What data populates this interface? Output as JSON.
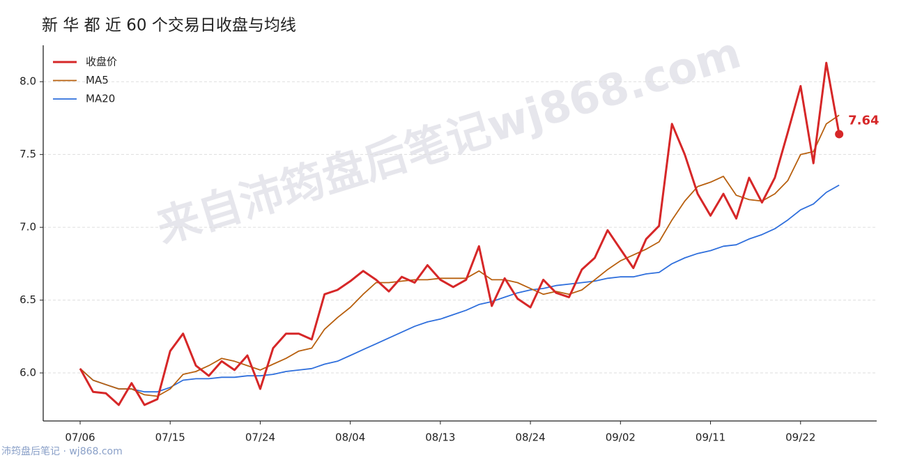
{
  "chart_data": {
    "type": "line",
    "title": "新 华 都 近 60 个交易日收盘与均线",
    "watermark": "来自沛筠盘后笔记wj868.com",
    "source": "沛筠盘后笔记 · wj868.com",
    "categories": [
      "07/06",
      null,
      null,
      null,
      null,
      null,
      null,
      "07/15",
      null,
      null,
      null,
      null,
      null,
      null,
      "07/24",
      null,
      null,
      null,
      null,
      null,
      null,
      "08/04",
      null,
      null,
      null,
      null,
      null,
      null,
      "08/13",
      null,
      null,
      null,
      null,
      null,
      null,
      "08/24",
      null,
      null,
      null,
      null,
      null,
      null,
      "09/02",
      null,
      null,
      null,
      null,
      null,
      null,
      "09/11",
      null,
      null,
      null,
      null,
      null,
      null,
      "09/22",
      null,
      null,
      null
    ],
    "series": [
      {
        "name": "收盘价",
        "color": "#d62728",
        "width": 3,
        "values": [
          6.03,
          5.87,
          5.86,
          5.78,
          5.93,
          5.78,
          5.82,
          6.15,
          6.27,
          6.05,
          5.98,
          6.08,
          6.02,
          6.12,
          5.89,
          6.17,
          6.27,
          6.27,
          6.23,
          6.54,
          6.57,
          6.63,
          6.7,
          6.64,
          6.56,
          6.66,
          6.62,
          6.74,
          6.64,
          6.59,
          6.64,
          6.87,
          6.46,
          6.65,
          6.51,
          6.45,
          6.64,
          6.55,
          6.52,
          6.71,
          6.79,
          6.98,
          6.85,
          6.72,
          6.92,
          7.01,
          7.71,
          7.5,
          7.23,
          7.08,
          7.23,
          7.06,
          7.34,
          7.17,
          7.34,
          7.65,
          7.97,
          7.44,
          8.13,
          7.64
        ]
      },
      {
        "name": "MA5",
        "color": "#b8600f",
        "width": 1.8,
        "values": [
          6.03,
          5.95,
          5.92,
          5.89,
          5.89,
          5.85,
          5.84,
          5.89,
          5.99,
          6.01,
          6.05,
          6.1,
          6.08,
          6.05,
          6.02,
          6.06,
          6.1,
          6.15,
          6.17,
          6.3,
          6.38,
          6.45,
          6.54,
          6.62,
          6.62,
          6.63,
          6.64,
          6.64,
          6.65,
          6.65,
          6.65,
          6.7,
          6.64,
          6.64,
          6.62,
          6.58,
          6.54,
          6.56,
          6.54,
          6.57,
          6.64,
          6.71,
          6.77,
          6.81,
          6.85,
          6.9,
          7.05,
          7.18,
          7.28,
          7.31,
          7.35,
          7.22,
          7.19,
          7.18,
          7.23,
          7.32,
          7.5,
          7.52,
          7.71,
          7.77
        ]
      },
      {
        "name": "MA20",
        "color": "#2f6fdc",
        "width": 1.8,
        "values": [
          6.03,
          5.95,
          5.92,
          5.89,
          5.89,
          5.87,
          5.87,
          5.9,
          5.95,
          5.96,
          5.96,
          5.97,
          5.97,
          5.98,
          5.98,
          5.99,
          6.01,
          6.02,
          6.03,
          6.06,
          6.08,
          6.12,
          6.16,
          6.2,
          6.24,
          6.28,
          6.32,
          6.35,
          6.37,
          6.4,
          6.43,
          6.47,
          6.49,
          6.52,
          6.55,
          6.57,
          6.58,
          6.6,
          6.61,
          6.62,
          6.63,
          6.65,
          6.66,
          6.66,
          6.68,
          6.69,
          6.75,
          6.79,
          6.82,
          6.84,
          6.87,
          6.88,
          6.92,
          6.95,
          6.99,
          7.05,
          7.12,
          7.16,
          7.24,
          7.29
        ]
      }
    ],
    "ylim": [
      5.67,
      8.25
    ],
    "yticks": [
      {
        "value": 6,
        "label": "6.0"
      },
      6.5,
      {
        "value": 7,
        "label": "7.0"
      },
      7.5,
      {
        "value": 8,
        "label": "8.0"
      }
    ],
    "grid": true,
    "legend": "upper left"
  }
}
